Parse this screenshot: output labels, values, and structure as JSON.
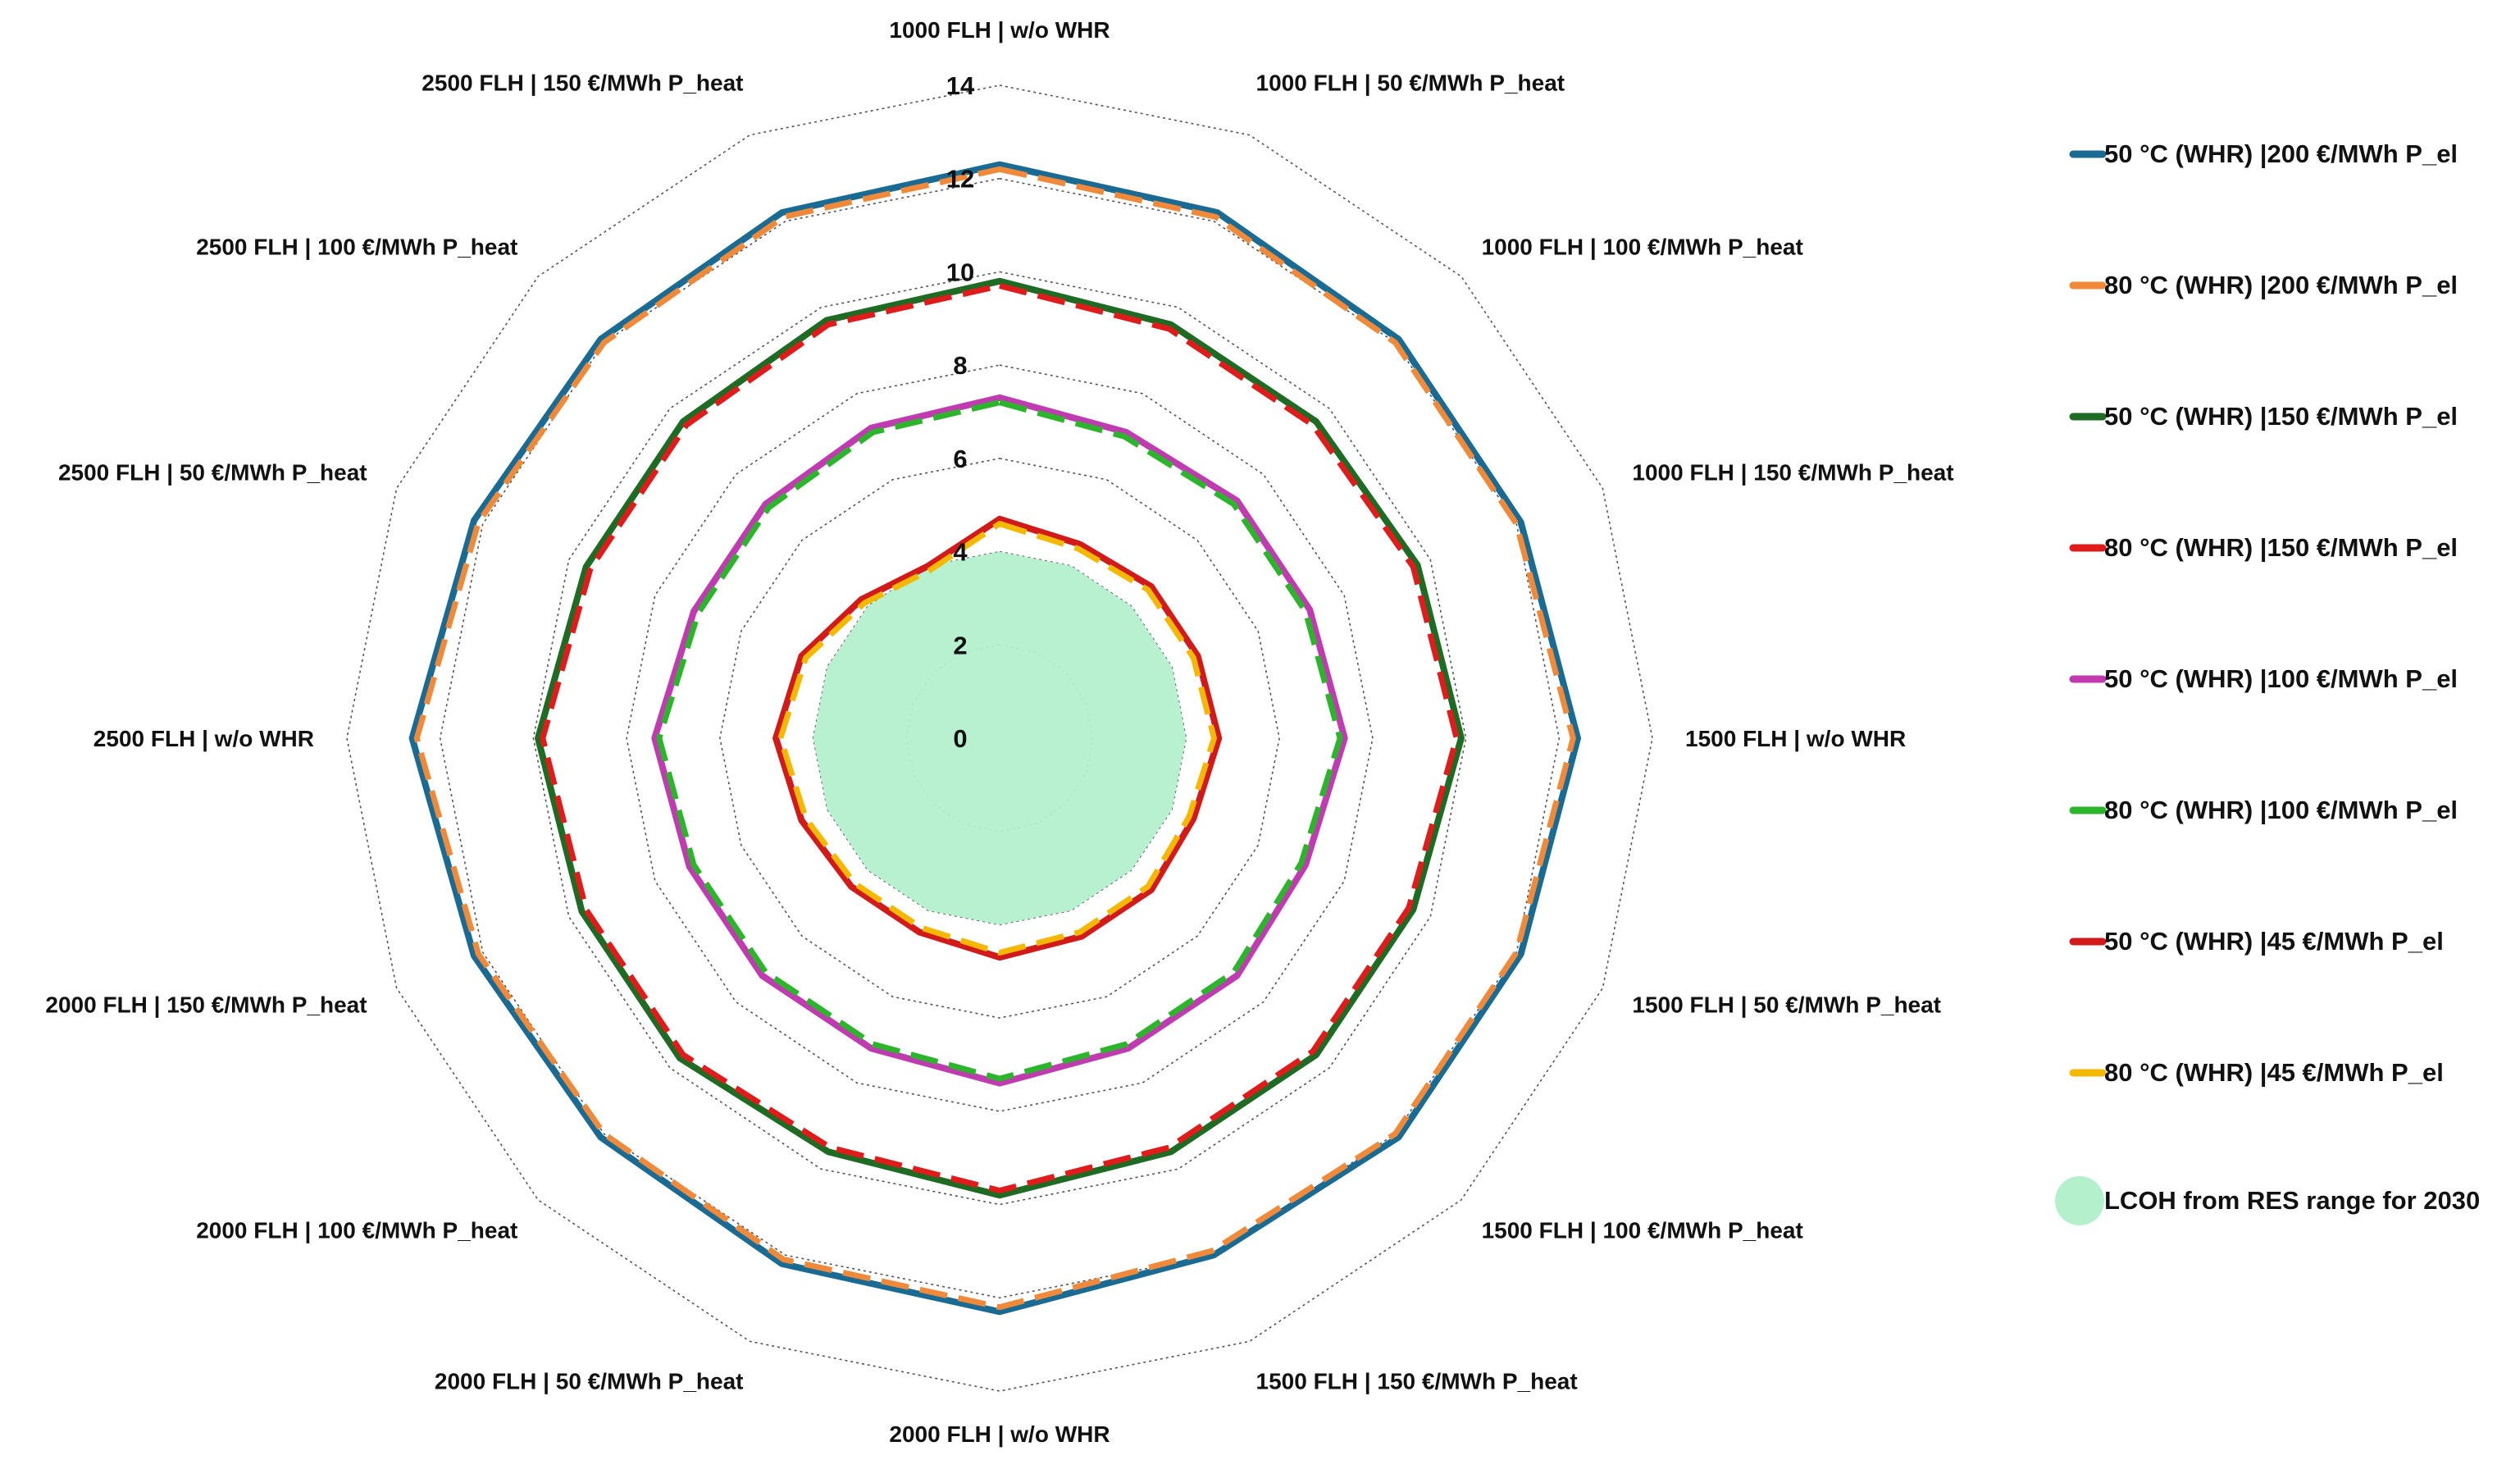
{
  "chart_data": {
    "type": "radar",
    "title": "",
    "categories": [
      "1000 FLH |  w/o WHR",
      "1000 FLH |  50 €/MWh P_heat",
      "1000 FLH |  100 €/MWh P_heat",
      "1000 FLH |  150 €/MWh P_heat",
      "1500 FLH |  w/o WHR",
      "1500 FLH |  50 €/MWh P_heat",
      "1500 FLH |  100 €/MWh P_heat",
      "1500 FLH |  150 €/MWh P_heat",
      "2000 FLH |  w/o WHR",
      "2000 FLH |  50 €/MWh P_heat",
      "2000 FLH |  100 €/MWh P_heat",
      "2000 FLH |  150 €/MWh P_heat",
      "2500 FLH |  w/o WHR",
      "2500 FLH |  50 €/MWh P_heat",
      "2500 FLH |  100 €/MWh P_heat",
      "2500 FLH |  150 €/MWh P_heat"
    ],
    "ticks": [
      "0",
      "2",
      "4",
      "6",
      "8",
      "10",
      "12",
      "14"
    ],
    "tick_values": [
      0,
      2,
      4,
      6,
      8,
      10,
      12,
      14
    ],
    "rlim": [
      0,
      14
    ],
    "grid": true,
    "legend_position": "right",
    "area": {
      "name": "LCOH from RES range for 2030",
      "color": "#b4f0cc",
      "values": [
        4.0,
        4.0,
        4.0,
        4.0,
        4.0,
        4.0,
        4.0,
        4.0,
        4.0,
        4.0,
        4.0,
        4.0,
        4.0,
        4.0,
        4.0,
        4.0
      ]
    },
    "series": [
      {
        "name": "50 °C (WHR) |200 €/MWh P_el",
        "color": "#1a6b94",
        "dashed": false,
        "values": [
          12.3,
          12.2,
          12.1,
          12.1,
          12.4,
          12.1,
          12.1,
          12.0,
          12.3,
          12.2,
          12.1,
          12.2,
          12.6,
          12.2,
          12.1,
          12.2
        ]
      },
      {
        "name": "80 °C (WHR) |200 €/MWh P_el",
        "color": "#f08a3a",
        "dashed": true,
        "values": [
          12.2,
          12.1,
          12.0,
          12.0,
          12.3,
          12.0,
          12.0,
          11.9,
          12.2,
          12.1,
          12.0,
          12.1,
          12.5,
          12.1,
          12.0,
          12.1
        ]
      },
      {
        "name": "50 °C (WHR) |150 €/MWh P_el",
        "color": "#1e6b24",
        "dashed": false,
        "values": [
          9.8,
          9.6,
          9.6,
          9.7,
          9.9,
          9.6,
          9.6,
          9.6,
          9.8,
          9.6,
          9.7,
          9.7,
          9.9,
          9.6,
          9.6,
          9.7
        ]
      },
      {
        "name": "80 °C (WHR) |150 €/MWh P_el",
        "color": "#e01b1b",
        "dashed": true,
        "values": [
          9.7,
          9.5,
          9.5,
          9.6,
          9.8,
          9.5,
          9.5,
          9.5,
          9.7,
          9.5,
          9.6,
          9.6,
          9.8,
          9.5,
          9.5,
          9.6
        ]
      },
      {
        "name": "50 °C (WHR) |100 €/MWh P_el",
        "color": "#c03ab0",
        "dashed": false,
        "values": [
          7.3,
          7.1,
          7.2,
          7.2,
          7.4,
          7.1,
          7.2,
          7.2,
          7.4,
          7.2,
          7.2,
          7.2,
          7.4,
          7.1,
          7.1,
          7.2
        ]
      },
      {
        "name": "80 °C (WHR) |100 €/MWh P_el",
        "color": "#2cb52c",
        "dashed": true,
        "values": [
          7.2,
          7.0,
          7.1,
          7.1,
          7.3,
          7.0,
          7.1,
          7.1,
          7.3,
          7.1,
          7.1,
          7.1,
          7.3,
          7.0,
          7.0,
          7.1
        ]
      },
      {
        "name": "50 °C (WHR) |45 €/MWh P_el",
        "color": "#d21a1a",
        "dashed": false,
        "values": [
          4.7,
          4.5,
          4.6,
          4.6,
          4.7,
          4.5,
          4.6,
          4.6,
          4.7,
          4.5,
          4.5,
          4.6,
          4.8,
          4.6,
          4.2,
          4.0
        ]
      },
      {
        "name": "80 °C (WHR) |45 €/MWh P_el",
        "color": "#f4b800",
        "dashed": true,
        "values": [
          4.6,
          4.4,
          4.5,
          4.5,
          4.6,
          4.4,
          4.5,
          4.5,
          4.6,
          4.4,
          4.4,
          4.5,
          4.7,
          4.5,
          4.1,
          3.9
        ]
      }
    ]
  }
}
